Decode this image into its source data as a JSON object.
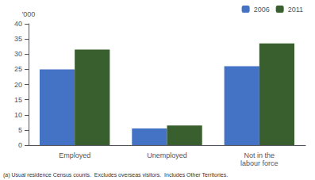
{
  "chart_data": {
    "type": "bar",
    "ylabel": "'000",
    "categories": [
      "Employed",
      "Unemployed",
      "Not in the\nlabour force"
    ],
    "series": [
      {
        "name": "2006",
        "color": "#4472C4",
        "values": [
          25,
          5.5,
          26
        ]
      },
      {
        "name": "2011",
        "color": "#3A5F2E",
        "values": [
          31.5,
          6.5,
          33.5
        ]
      }
    ],
    "ylim": [
      0,
      40
    ],
    "yticks": [
      0,
      5,
      10,
      15,
      20,
      25,
      30,
      35,
      40
    ],
    "grid": false,
    "legend": "upper right",
    "footnote": "(a) Usual residence Census counts.  Excludes overseas visitors.  Includes Other Territories."
  }
}
